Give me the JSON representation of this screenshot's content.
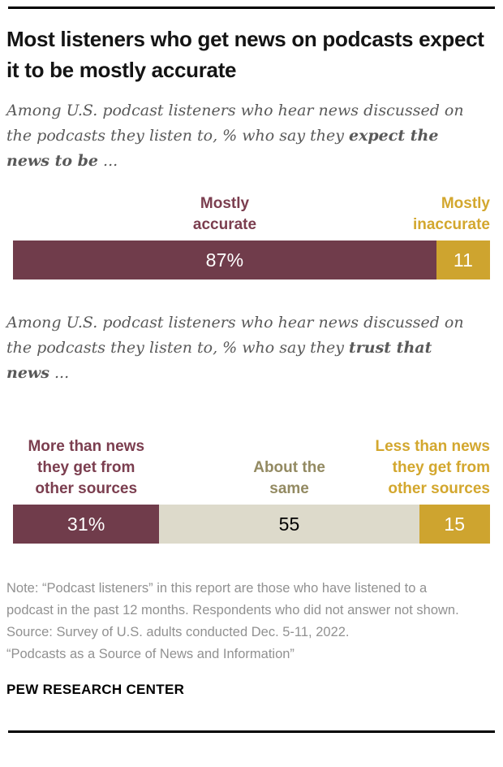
{
  "title": "Most listeners who get news on podcasts expect it to be mostly accurate",
  "charts": [
    {
      "subtitle": {
        "pre": "Among U.S. podcast listeners who hear news discussed on the podcasts they listen to, % who say they ",
        "bold": "expect the news to be",
        "post": " ..."
      },
      "labels": [
        {
          "lines": [
            "Mostly",
            "accurate"
          ]
        },
        {
          "lines": [
            "Mostly",
            "inaccurate"
          ]
        }
      ],
      "values": [
        "87%",
        "11"
      ]
    },
    {
      "subtitle": {
        "pre": "Among U.S. podcast listeners who hear news discussed on the podcasts they listen to, % who say they ",
        "bold": "trust that news",
        "post": " ..."
      },
      "labels": [
        {
          "lines": [
            "More than news",
            "they get from",
            "other sources"
          ]
        },
        {
          "lines": [
            "About the",
            "same"
          ]
        },
        {
          "lines": [
            "Less than news",
            "they get from",
            "other sources"
          ]
        }
      ],
      "values": [
        "31%",
        "55",
        "15"
      ]
    }
  ],
  "chart_data": [
    {
      "type": "bar",
      "orientation": "horizontal",
      "stacked": true,
      "question": "Among U.S. podcast listeners who hear news discussed on the podcasts they listen to, % who say they expect the news to be ...",
      "categories": [
        "Mostly accurate",
        "Mostly inaccurate"
      ],
      "values": [
        87,
        11
      ],
      "value_labels": [
        "87%",
        "11"
      ],
      "colors": [
        "#703C4B",
        "#CEA42F"
      ],
      "value_colors": [
        "#FFFFFF",
        "#FFFFFF"
      ],
      "label_colors": [
        "#7B3E4F",
        "#D3A72E"
      ],
      "legend_position": "above-bar",
      "axis": "none"
    },
    {
      "type": "bar",
      "orientation": "horizontal",
      "stacked": true,
      "question": "Among U.S. podcast listeners who hear news discussed on the podcasts they listen to, % who say they trust that news ...",
      "categories": [
        "More than news they get from other sources",
        "About the same",
        "Less than news they get from other sources"
      ],
      "values": [
        31,
        55,
        15
      ],
      "value_labels": [
        "31%",
        "55",
        "15"
      ],
      "colors": [
        "#703C4B",
        "#DDDACB",
        "#CEA42F"
      ],
      "value_colors": [
        "#FFFFFF",
        "#000000",
        "#FFFFFF"
      ],
      "label_colors": [
        "#7B3E4F",
        "#938A62",
        "#D3A72E"
      ],
      "legend_position": "above-bar",
      "axis": "none"
    }
  ],
  "note": {
    "note_text": "Note: “Podcast listeners” in this report are those who have listened to a podcast in the past 12 months. Respondents who did not answer not shown.",
    "source_text": "Source: Survey of U.S. adults conducted Dec. 5-11, 2022.",
    "study_text": "“Podcasts as a Source of News and Information”"
  },
  "brand": "PEW RESEARCH CENTER"
}
